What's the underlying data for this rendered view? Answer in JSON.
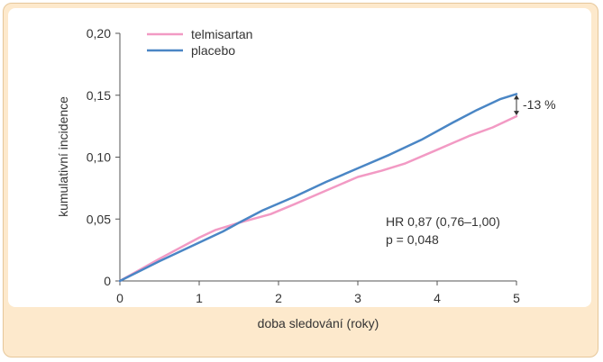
{
  "chart_data": {
    "type": "line",
    "title": "",
    "xlabel": "doba sledování (roky)",
    "ylabel": "kumulativní incidence",
    "xlim": [
      0,
      5
    ],
    "ylim": [
      0,
      0.2
    ],
    "xticks": [
      {
        "value": 0,
        "label": "0"
      },
      {
        "value": 1,
        "label": "1"
      },
      {
        "value": 2,
        "label": "2"
      },
      {
        "value": 3,
        "label": "3"
      },
      {
        "value": 4,
        "label": "4"
      },
      {
        "value": 5,
        "label": "5"
      }
    ],
    "yticks": [
      {
        "value": 0,
        "label": "0"
      },
      {
        "value": 0.05,
        "label": "0,05"
      },
      {
        "value": 0.1,
        "label": "0,10"
      },
      {
        "value": 0.15,
        "label": "0,15"
      },
      {
        "value": 0.2,
        "label": "0,20"
      }
    ],
    "legend_position": "top-left",
    "series": [
      {
        "name": "telmisartan",
        "color": "#f29ac4",
        "points": [
          [
            0,
            0
          ],
          [
            0.5,
            0.018
          ],
          [
            1.0,
            0.035
          ],
          [
            1.2,
            0.041
          ],
          [
            1.5,
            0.047
          ],
          [
            1.9,
            0.054
          ],
          [
            2.2,
            0.062
          ],
          [
            2.6,
            0.073
          ],
          [
            3.0,
            0.084
          ],
          [
            3.3,
            0.089
          ],
          [
            3.6,
            0.095
          ],
          [
            4.0,
            0.106
          ],
          [
            4.4,
            0.117
          ],
          [
            4.7,
            0.124
          ],
          [
            5.0,
            0.133
          ]
        ]
      },
      {
        "name": "placebo",
        "color": "#4a86c5",
        "points": [
          [
            0,
            0
          ],
          [
            0.5,
            0.016
          ],
          [
            1.0,
            0.031
          ],
          [
            1.3,
            0.04
          ],
          [
            1.5,
            0.047
          ],
          [
            1.8,
            0.057
          ],
          [
            2.2,
            0.068
          ],
          [
            2.6,
            0.08
          ],
          [
            3.0,
            0.091
          ],
          [
            3.4,
            0.102
          ],
          [
            3.8,
            0.114
          ],
          [
            4.2,
            0.128
          ],
          [
            4.5,
            0.138
          ],
          [
            4.8,
            0.147
          ],
          [
            5.0,
            0.151
          ]
        ]
      }
    ],
    "annotations": {
      "reduction_label": "-13 %",
      "hr_text": "HR 0,87 (0,76–1,00)",
      "p_text": "p = 0,048"
    }
  }
}
